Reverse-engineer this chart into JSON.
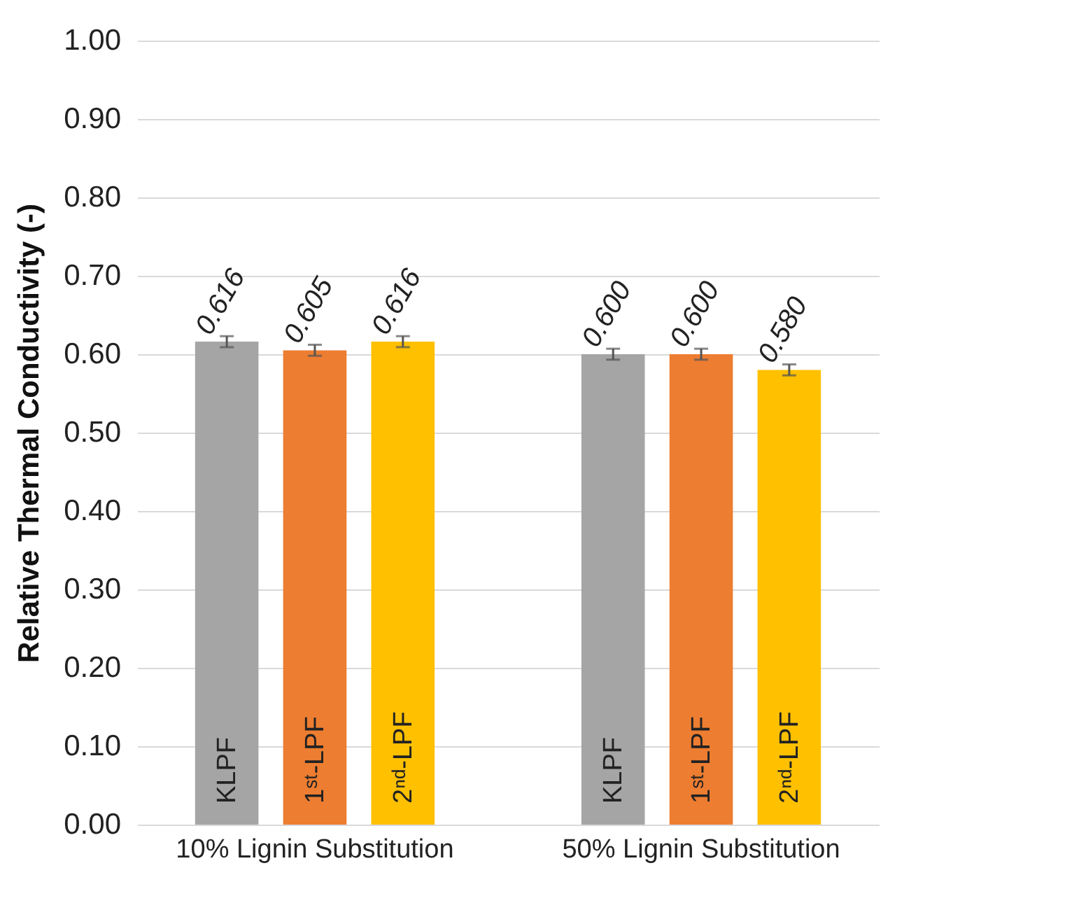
{
  "chart_data": {
    "type": "bar",
    "ylabel": "Relative Thermal Conductivity (-)",
    "categories": [
      "10% Lignin Substitution",
      "50% Lignin Substitution"
    ],
    "series": [
      {
        "name": "KLPF",
        "color": "#a5a5a5",
        "values": [
          0.616,
          0.6
        ],
        "errors": [
          0.007,
          0.007
        ],
        "value_labels": [
          "0.616",
          "0.600"
        ]
      },
      {
        "name": "1ˢᵗ-LPF",
        "color": "#ed7d31",
        "values": [
          0.605,
          0.6
        ],
        "errors": [
          0.007,
          0.007
        ],
        "value_labels": [
          "0.605",
          "0.600"
        ]
      },
      {
        "name": "2ⁿᵈ-LPF",
        "color": "#ffc000",
        "values": [
          0.616,
          0.58
        ],
        "errors": [
          0.007,
          0.007
        ],
        "value_labels": [
          "0.616",
          "0.580"
        ]
      }
    ],
    "ylim": [
      0,
      1
    ],
    "yticks": [
      {
        "value": 0,
        "label": "0.00"
      },
      {
        "value": 0.1,
        "label": "0.10"
      },
      {
        "value": 0.2,
        "label": "0.20"
      },
      {
        "value": 0.3,
        "label": "0.30"
      },
      {
        "value": 0.4,
        "label": "0.40"
      },
      {
        "value": 0.5,
        "label": "0.50"
      },
      {
        "value": 0.6,
        "label": "0.60"
      },
      {
        "value": 0.7,
        "label": "0.70"
      },
      {
        "value": 0.8,
        "label": "0.80"
      },
      {
        "value": 0.9,
        "label": "0.90"
      },
      {
        "value": 1,
        "label": "1.00"
      }
    ],
    "grid": true,
    "legend": false
  }
}
